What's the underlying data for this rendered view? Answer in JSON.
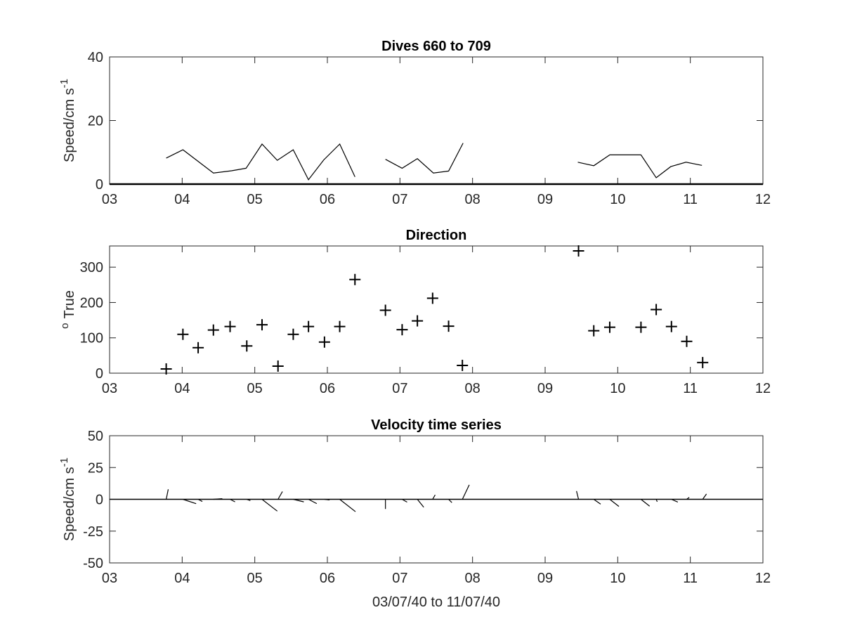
{
  "chart_data": [
    {
      "type": "line",
      "title": "Dives 660 to 709",
      "ylabel_main": "Speed/cm s",
      "ylabel_sup": "-1",
      "xlabel": "",
      "xlim": [
        3,
        12
      ],
      "ylim": [
        0,
        40
      ],
      "xtick_values": [
        3,
        4,
        5,
        6,
        7,
        8,
        9,
        10,
        11,
        12
      ],
      "xtick_labels": [
        "03",
        "04",
        "05",
        "06",
        "07",
        "08",
        "09",
        "10",
        "11",
        "12"
      ],
      "ytick_values": [
        0,
        20,
        40
      ],
      "ytick_labels": [
        "0",
        "20",
        "40"
      ],
      "baseline": 0,
      "series": [
        {
          "segments": [
            [
              [
                3.78,
                8.2
              ],
              [
                4.01,
                10.8
              ],
              [
                4.43,
                3.5
              ],
              [
                4.68,
                4.2
              ],
              [
                4.88,
                5.0
              ],
              [
                5.1,
                12.6
              ],
              [
                5.31,
                7.5
              ],
              [
                5.53,
                10.8
              ],
              [
                5.74,
                1.4
              ],
              [
                5.95,
                7.6
              ],
              [
                6.17,
                12.6
              ],
              [
                6.38,
                2.3
              ]
            ],
            [
              [
                6.8,
                7.8
              ],
              [
                7.03,
                5.0
              ],
              [
                7.24,
                8.0
              ],
              [
                7.46,
                3.5
              ],
              [
                7.67,
                4.1
              ],
              [
                7.87,
                12.9
              ]
            ],
            [
              [
                9.45,
                6.9
              ],
              [
                9.67,
                5.8
              ],
              [
                9.89,
                9.2
              ],
              [
                10.32,
                9.2
              ],
              [
                10.53,
                2.0
              ],
              [
                10.73,
                5.5
              ],
              [
                10.94,
                6.9
              ],
              [
                11.16,
                5.9
              ]
            ]
          ]
        }
      ]
    },
    {
      "type": "scatter",
      "title": "Direction",
      "ylabel_main": "True",
      "ylabel_sup": "o",
      "xlabel": "",
      "xlim": [
        3,
        12
      ],
      "ylim": [
        0,
        360
      ],
      "xtick_values": [
        3,
        4,
        5,
        6,
        7,
        8,
        9,
        10,
        11,
        12
      ],
      "xtick_labels": [
        "03",
        "04",
        "05",
        "06",
        "07",
        "08",
        "09",
        "10",
        "11",
        "12"
      ],
      "ytick_values": [
        0,
        100,
        200,
        300
      ],
      "ytick_labels": [
        "0",
        "100",
        "200",
        "300"
      ],
      "marker": "+",
      "points": [
        [
          3.78,
          12
        ],
        [
          4.01,
          110
        ],
        [
          4.22,
          72
        ],
        [
          4.43,
          122
        ],
        [
          4.66,
          132
        ],
        [
          4.89,
          77
        ],
        [
          5.1,
          137
        ],
        [
          5.32,
          20
        ],
        [
          5.53,
          110
        ],
        [
          5.74,
          132
        ],
        [
          5.96,
          88
        ],
        [
          6.17,
          132
        ],
        [
          6.38,
          265
        ],
        [
          6.8,
          178
        ],
        [
          7.03,
          123
        ],
        [
          7.24,
          148
        ],
        [
          7.45,
          212
        ],
        [
          7.67,
          133
        ],
        [
          7.86,
          22
        ],
        [
          9.46,
          346
        ],
        [
          9.67,
          120
        ],
        [
          9.89,
          130
        ],
        [
          10.32,
          130
        ],
        [
          10.53,
          180
        ],
        [
          10.74,
          132
        ],
        [
          10.95,
          90
        ],
        [
          11.17,
          30
        ]
      ]
    },
    {
      "type": "line",
      "title": "Velocity time series",
      "ylabel_main": "Speed/cm s",
      "ylabel_sup": "-1",
      "xlabel": "03/07/40 to 11/07/40",
      "xlim": [
        3,
        12
      ],
      "ylim": [
        -50,
        50
      ],
      "xtick_values": [
        3,
        4,
        5,
        6,
        7,
        8,
        9,
        10,
        11,
        12
      ],
      "xtick_labels": [
        "03",
        "04",
        "05",
        "06",
        "07",
        "08",
        "09",
        "10",
        "11",
        "12"
      ],
      "ytick_values": [
        -50,
        -25,
        0,
        25,
        50
      ],
      "ytick_labels": [
        "-50",
        "-25",
        "0",
        "25",
        "50"
      ],
      "baseline": 0,
      "sticks": [
        [
          3.78,
          1.6,
          7.9
        ],
        [
          4.01,
          10.4,
          -3.4
        ],
        [
          4.22,
          3.3,
          -1.7
        ],
        [
          4.43,
          7.0,
          0.5
        ],
        [
          4.66,
          3.9,
          -2.0
        ],
        [
          4.89,
          2.8,
          -1.0
        ],
        [
          5.1,
          12.0,
          -9.3
        ],
        [
          5.32,
          3.5,
          6.1
        ],
        [
          5.53,
          8.3,
          -2.0
        ],
        [
          5.74,
          6.5,
          -3.4
        ],
        [
          5.96,
          4.0,
          -0.5
        ],
        [
          6.17,
          12.4,
          -9.7
        ],
        [
          6.8,
          0.0,
          -7.6
        ],
        [
          7.03,
          3.9,
          -2.2
        ],
        [
          7.24,
          5.0,
          -6.2
        ],
        [
          7.45,
          2.0,
          3.5
        ],
        [
          7.67,
          2.6,
          -2.6
        ],
        [
          7.86,
          5.4,
          11.4
        ],
        [
          9.46,
          -1.6,
          6.5
        ],
        [
          9.67,
          5.4,
          -3.8
        ],
        [
          9.89,
          7.2,
          -5.6
        ],
        [
          10.32,
          6.8,
          -5.4
        ],
        [
          10.53,
          0.8,
          -1.9
        ],
        [
          10.74,
          5.0,
          -2.2
        ],
        [
          10.95,
          2.0,
          1.5
        ],
        [
          11.17,
          3.0,
          4.2
        ]
      ]
    }
  ]
}
